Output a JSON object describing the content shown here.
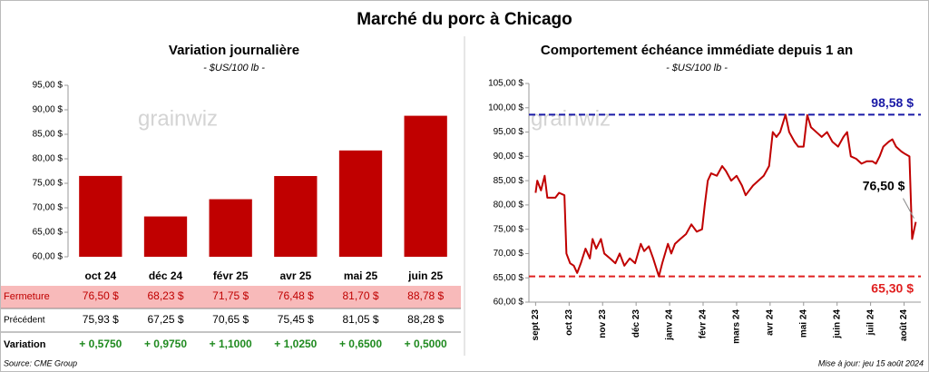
{
  "title": "Marché du porc à Chicago",
  "watermark": "grainwiz",
  "chart_data": [
    {
      "type": "bar",
      "title": "Variation journalière",
      "subtitle": "- $US/100 lb -",
      "categories": [
        "oct 24",
        "déc 24",
        "févr 25",
        "avr 25",
        "mai 25",
        "juin 25"
      ],
      "values": [
        76.5,
        68.23,
        71.75,
        76.48,
        81.7,
        88.78
      ],
      "color": "#c00000",
      "ylim": [
        60,
        95
      ],
      "yticks": [
        {
          "value": 60,
          "label": "60,00 $"
        },
        {
          "value": 65,
          "label": "65,00 $"
        },
        {
          "value": 70,
          "label": "70,00 $"
        },
        {
          "value": 75,
          "label": "75,00 $"
        },
        {
          "value": 80,
          "label": "80,00 $"
        },
        {
          "value": 85,
          "label": "85,00 $"
        },
        {
          "value": 90,
          "label": "90,00 $"
        },
        {
          "value": 95,
          "label": "95,00 $"
        }
      ],
      "grid": false
    },
    {
      "type": "line",
      "title": "Comportement échéance immédiate depuis 1 an",
      "subtitle": "- $US/100 lb -",
      "x": [
        0,
        0.05,
        0.16,
        0.27,
        0.35,
        0.59,
        0.7,
        0.86,
        0.92,
        1.03,
        1.14,
        1.24,
        1.35,
        1.49,
        1.62,
        1.7,
        1.81,
        1.95,
        2.05,
        2.22,
        2.38,
        2.51,
        2.65,
        2.81,
        2.97,
        3.14,
        3.24,
        3.38,
        3.51,
        3.68,
        3.78,
        3.95,
        4.05,
        4.16,
        4.32,
        4.49,
        4.65,
        4.81,
        4.97,
        5.05,
        5.14,
        5.24,
        5.41,
        5.57,
        5.68,
        5.84,
        6,
        6.16,
        6.27,
        6.38,
        6.49,
        6.65,
        6.81,
        6.97,
        7.08,
        7.19,
        7.3,
        7.46,
        7.57,
        7.73,
        7.84,
        8,
        8.11,
        8.22,
        8.38,
        8.54,
        8.7,
        8.86,
        9.03,
        9.19,
        9.3,
        9.41,
        9.57,
        9.73,
        9.89,
        10.05,
        10.16,
        10.27,
        10.38,
        10.54,
        10.65,
        10.76,
        10.92,
        11.03,
        11.16,
        11.24,
        11.35
      ],
      "series": [
        {
          "color": "#c00000",
          "values": [
            82.5,
            85,
            83,
            86,
            81.5,
            81.5,
            82.5,
            82,
            70,
            68,
            67.5,
            66,
            68,
            71,
            69,
            73,
            71,
            73,
            70,
            69,
            68,
            70,
            67.5,
            69,
            68,
            72,
            70.5,
            71.5,
            69,
            65.3,
            68,
            72,
            70,
            72,
            73,
            74,
            76,
            74.5,
            75,
            80,
            85,
            86.5,
            86,
            88,
            87,
            85,
            86,
            84,
            82,
            83,
            84,
            85,
            86,
            88,
            95,
            94,
            95,
            98.58,
            95,
            93,
            92,
            92,
            98.5,
            96,
            95,
            94,
            95,
            93,
            92,
            94,
            95,
            90,
            89.5,
            88.5,
            89,
            89,
            88.5,
            90,
            92,
            93,
            93.5,
            92,
            91,
            90.5,
            90,
            73,
            76.5
          ]
        }
      ],
      "xlim": [
        -0.2,
        11.5
      ],
      "xticks": [
        {
          "value": 0,
          "label": "sept 23"
        },
        {
          "value": 1,
          "label": "oct 23"
        },
        {
          "value": 2,
          "label": "nov 23"
        },
        {
          "value": 3,
          "label": "déc 23"
        },
        {
          "value": 4,
          "label": "janv 24"
        },
        {
          "value": 5,
          "label": "févr 24"
        },
        {
          "value": 6,
          "label": "mars 24"
        },
        {
          "value": 7,
          "label": "avr 24"
        },
        {
          "value": 8,
          "label": "mai 24"
        },
        {
          "value": 9,
          "label": "juin 24"
        },
        {
          "value": 10,
          "label": "juil 24"
        },
        {
          "value": 11,
          "label": "août 24"
        }
      ],
      "ylim": [
        60,
        105
      ],
      "yticks": [
        {
          "value": 60,
          "label": "60,00 $"
        },
        {
          "value": 65,
          "label": "65,00 $"
        },
        {
          "value": 70,
          "label": "70,00 $"
        },
        {
          "value": 75,
          "label": "75,00 $"
        },
        {
          "value": 80,
          "label": "80,00 $"
        },
        {
          "value": 85,
          "label": "85,00 $"
        },
        {
          "value": 90,
          "label": "90,00 $"
        },
        {
          "value": 95,
          "label": "95,00 $"
        },
        {
          "value": 100,
          "label": "100,00 $"
        },
        {
          "value": 105,
          "label": "105,00 $"
        }
      ],
      "grid": false,
      "hlines": [
        {
          "value": 98.58,
          "label": "98,58 $",
          "color": "#1a1aa6"
        },
        {
          "value": 65.3,
          "label": "65,30 $",
          "color": "#e02020"
        }
      ],
      "last_value_label": "76,50 $"
    }
  ],
  "table": {
    "rows": [
      {
        "label": "Fermeture",
        "cells": [
          "76,50 $",
          "68,23 $",
          "71,75 $",
          "76,48 $",
          "81,70 $",
          "88,78 $"
        ]
      },
      {
        "label": "Précédent",
        "cells": [
          "75,93 $",
          "67,25 $",
          "70,65 $",
          "75,45 $",
          "81,05 $",
          "88,28 $"
        ]
      },
      {
        "label": "Variation",
        "cells": [
          "+ 0,5750",
          "+ 0,9750",
          "+ 1,1000",
          "+ 1,0250",
          "+ 0,6500",
          "+ 0,5000"
        ]
      }
    ]
  },
  "source": "Source: CME Group",
  "updated": "Mise à jour: jeu 15 août 2024"
}
